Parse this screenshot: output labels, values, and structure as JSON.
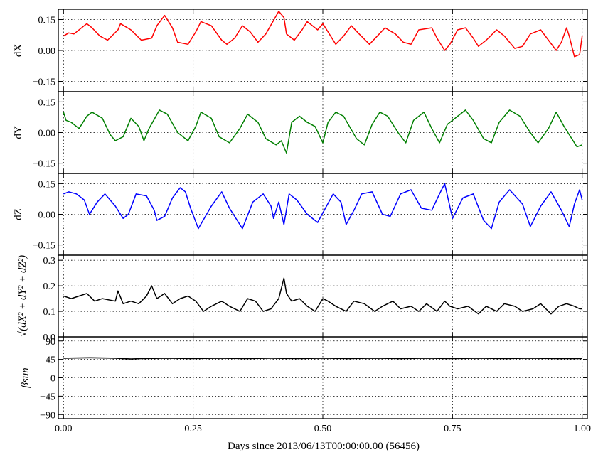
{
  "chart_data": {
    "type": "line",
    "grid": true,
    "xlabel": "Days since 2013/06/13T00:00:00.00 (56456)",
    "xlim": [
      -0.01,
      1.01
    ],
    "xticks": [
      0.0,
      0.25,
      0.5,
      0.75,
      1.0
    ],
    "xtick_labels": [
      "0.00",
      "0.25",
      "0.50",
      "0.75",
      "1.00"
    ],
    "panels": [
      {
        "ylabel": "dX",
        "ylim": [
          -0.2,
          0.2
        ],
        "yticks": [
          -0.15,
          0.0,
          0.15
        ],
        "ytick_labels": [
          "−0.15",
          "0.00",
          "0.15"
        ],
        "color": "#ff0000",
        "x": [
          0.0,
          0.01,
          0.02,
          0.035,
          0.045,
          0.055,
          0.07,
          0.085,
          0.105,
          0.11,
          0.13,
          0.15,
          0.17,
          0.18,
          0.195,
          0.21,
          0.22,
          0.24,
          0.255,
          0.265,
          0.285,
          0.305,
          0.315,
          0.33,
          0.345,
          0.36,
          0.375,
          0.39,
          0.415,
          0.425,
          0.43,
          0.445,
          0.46,
          0.47,
          0.49,
          0.5,
          0.51,
          0.525,
          0.54,
          0.555,
          0.57,
          0.59,
          0.605,
          0.62,
          0.64,
          0.655,
          0.67,
          0.685,
          0.71,
          0.72,
          0.735,
          0.745,
          0.76,
          0.775,
          0.79,
          0.8,
          0.815,
          0.835,
          0.85,
          0.87,
          0.885,
          0.9,
          0.92,
          0.935,
          0.95,
          0.96,
          0.97,
          0.975,
          0.985,
          0.995,
          1.0
        ],
        "values": [
          0.07,
          0.085,
          0.08,
          0.11,
          0.13,
          0.11,
          0.07,
          0.05,
          0.1,
          0.13,
          0.1,
          0.05,
          0.06,
          0.12,
          0.17,
          0.11,
          0.04,
          0.03,
          0.09,
          0.14,
          0.12,
          0.05,
          0.03,
          0.06,
          0.12,
          0.09,
          0.04,
          0.08,
          0.19,
          0.16,
          0.08,
          0.05,
          0.1,
          0.14,
          0.1,
          0.13,
          0.09,
          0.03,
          0.07,
          0.12,
          0.08,
          0.03,
          0.07,
          0.11,
          0.08,
          0.04,
          0.03,
          0.1,
          0.11,
          0.06,
          0.0,
          0.03,
          0.1,
          0.11,
          0.06,
          0.02,
          0.05,
          0.1,
          0.07,
          0.01,
          0.02,
          0.08,
          0.1,
          0.05,
          0.0,
          0.04,
          0.11,
          0.07,
          -0.03,
          -0.02,
          0.07
        ]
      },
      {
        "ylabel": "dY",
        "ylim": [
          -0.2,
          0.2
        ],
        "yticks": [
          -0.15,
          0.0,
          0.15
        ],
        "ytick_labels": [
          "−0.15",
          "0.00",
          "0.15"
        ],
        "color": "#007f00",
        "x": [
          0.0,
          0.005,
          0.015,
          0.03,
          0.045,
          0.055,
          0.075,
          0.09,
          0.1,
          0.115,
          0.13,
          0.145,
          0.155,
          0.165,
          0.185,
          0.2,
          0.22,
          0.24,
          0.255,
          0.265,
          0.285,
          0.3,
          0.32,
          0.34,
          0.355,
          0.375,
          0.39,
          0.41,
          0.42,
          0.43,
          0.44,
          0.455,
          0.47,
          0.485,
          0.5,
          0.51,
          0.525,
          0.54,
          0.565,
          0.58,
          0.595,
          0.61,
          0.625,
          0.645,
          0.66,
          0.675,
          0.695,
          0.71,
          0.725,
          0.74,
          0.76,
          0.775,
          0.79,
          0.81,
          0.825,
          0.84,
          0.86,
          0.88,
          0.9,
          0.915,
          0.935,
          0.95,
          0.965,
          0.98,
          0.99,
          1.0
        ],
        "values": [
          0.1,
          0.06,
          0.05,
          0.02,
          0.08,
          0.1,
          0.07,
          -0.01,
          -0.04,
          -0.02,
          0.07,
          0.03,
          -0.04,
          0.02,
          0.11,
          0.09,
          0.0,
          -0.04,
          0.03,
          0.1,
          0.07,
          -0.02,
          -0.05,
          0.02,
          0.09,
          0.05,
          -0.03,
          -0.06,
          -0.04,
          -0.1,
          0.05,
          0.08,
          0.05,
          0.03,
          -0.05,
          0.05,
          0.1,
          0.08,
          -0.03,
          -0.06,
          0.04,
          0.1,
          0.08,
          0.0,
          -0.05,
          0.06,
          0.1,
          0.02,
          -0.05,
          0.04,
          0.08,
          0.11,
          0.06,
          -0.03,
          -0.05,
          0.05,
          0.11,
          0.08,
          0.0,
          -0.05,
          0.02,
          0.1,
          0.03,
          -0.03,
          -0.07,
          -0.06
        ]
      },
      {
        "ylabel": "dZ",
        "ylim": [
          -0.2,
          0.2
        ],
        "yticks": [
          -0.15,
          0.0,
          0.15
        ],
        "ytick_labels": [
          "−0.15",
          "0.00",
          "0.15"
        ],
        "color": "#0000ff",
        "x": [
          0.0,
          0.01,
          0.025,
          0.04,
          0.05,
          0.065,
          0.08,
          0.1,
          0.115,
          0.125,
          0.14,
          0.16,
          0.175,
          0.18,
          0.195,
          0.21,
          0.225,
          0.235,
          0.245,
          0.26,
          0.285,
          0.305,
          0.32,
          0.345,
          0.365,
          0.385,
          0.4,
          0.405,
          0.415,
          0.425,
          0.435,
          0.45,
          0.47,
          0.49,
          0.505,
          0.52,
          0.535,
          0.545,
          0.56,
          0.575,
          0.595,
          0.615,
          0.63,
          0.65,
          0.67,
          0.69,
          0.71,
          0.725,
          0.735,
          0.75,
          0.77,
          0.79,
          0.81,
          0.825,
          0.84,
          0.86,
          0.885,
          0.9,
          0.92,
          0.94,
          0.96,
          0.975,
          0.985,
          0.995,
          1.0
        ],
        "values": [
          0.1,
          0.11,
          0.1,
          0.07,
          0.0,
          0.06,
          0.1,
          0.04,
          -0.02,
          0.0,
          0.1,
          0.09,
          0.02,
          -0.03,
          -0.01,
          0.08,
          0.13,
          0.11,
          0.03,
          -0.07,
          0.04,
          0.11,
          0.03,
          -0.07,
          0.06,
          0.1,
          0.04,
          -0.02,
          0.06,
          -0.05,
          0.1,
          0.07,
          0.0,
          -0.04,
          0.03,
          0.1,
          0.06,
          -0.05,
          0.02,
          0.1,
          0.11,
          0.0,
          -0.01,
          0.1,
          0.12,
          0.03,
          0.02,
          0.1,
          0.15,
          -0.02,
          0.08,
          0.1,
          -0.03,
          -0.07,
          0.06,
          0.12,
          0.05,
          -0.06,
          0.04,
          0.11,
          0.02,
          -0.06,
          0.05,
          0.12,
          0.07
        ]
      },
      {
        "ylabel": "√(dX² + dY² + dZ²)",
        "ylim": [
          0.0,
          0.32
        ],
        "yticks": [
          0.0,
          0.1,
          0.2,
          0.3
        ],
        "ytick_labels": [
          "0.0",
          "0.1",
          "0.2",
          "0.3"
        ],
        "color": "#000000",
        "x": [
          0.0,
          0.015,
          0.03,
          0.045,
          0.06,
          0.075,
          0.1,
          0.105,
          0.115,
          0.13,
          0.145,
          0.16,
          0.17,
          0.18,
          0.195,
          0.21,
          0.225,
          0.24,
          0.255,
          0.27,
          0.285,
          0.305,
          0.32,
          0.34,
          0.355,
          0.37,
          0.385,
          0.4,
          0.415,
          0.425,
          0.43,
          0.44,
          0.455,
          0.47,
          0.485,
          0.5,
          0.51,
          0.525,
          0.545,
          0.56,
          0.58,
          0.6,
          0.615,
          0.635,
          0.65,
          0.67,
          0.685,
          0.7,
          0.72,
          0.735,
          0.745,
          0.76,
          0.78,
          0.8,
          0.815,
          0.835,
          0.85,
          0.87,
          0.885,
          0.905,
          0.92,
          0.94,
          0.955,
          0.97,
          0.985,
          0.995,
          1.0
        ],
        "values": [
          0.16,
          0.15,
          0.16,
          0.17,
          0.14,
          0.15,
          0.14,
          0.18,
          0.13,
          0.14,
          0.13,
          0.16,
          0.2,
          0.15,
          0.17,
          0.13,
          0.15,
          0.16,
          0.14,
          0.1,
          0.12,
          0.14,
          0.12,
          0.1,
          0.15,
          0.14,
          0.1,
          0.11,
          0.15,
          0.23,
          0.17,
          0.14,
          0.15,
          0.12,
          0.1,
          0.15,
          0.14,
          0.12,
          0.1,
          0.14,
          0.13,
          0.1,
          0.12,
          0.14,
          0.11,
          0.12,
          0.1,
          0.13,
          0.1,
          0.14,
          0.12,
          0.11,
          0.12,
          0.09,
          0.12,
          0.1,
          0.13,
          0.12,
          0.1,
          0.11,
          0.13,
          0.09,
          0.12,
          0.13,
          0.12,
          0.11,
          0.11
        ]
      },
      {
        "ylabel": "βsun",
        "ylim": [
          -100,
          100
        ],
        "yticks": [
          -90,
          -45,
          0,
          45,
          90
        ],
        "ytick_labels": [
          "−90",
          "−45",
          "0",
          "45",
          "90"
        ],
        "color": "#000000",
        "x": [
          0.0,
          0.05,
          0.1,
          0.13,
          0.15,
          0.2,
          0.25,
          0.3,
          0.35,
          0.4,
          0.45,
          0.5,
          0.55,
          0.6,
          0.65,
          0.7,
          0.75,
          0.8,
          0.85,
          0.9,
          0.95,
          1.0
        ],
        "values": [
          48,
          49,
          48,
          46,
          47,
          48,
          47,
          48,
          47,
          48,
          47,
          48,
          47,
          48,
          47,
          48,
          47,
          48,
          47,
          48,
          47,
          47
        ]
      }
    ]
  }
}
